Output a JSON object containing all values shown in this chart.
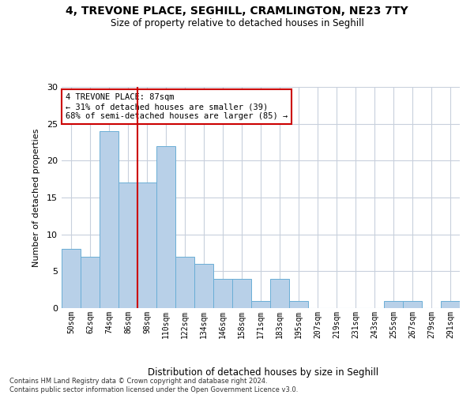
{
  "title1": "4, TREVONE PLACE, SEGHILL, CRAMLINGTON, NE23 7TY",
  "title2": "Size of property relative to detached houses in Seghill",
  "xlabel": "Distribution of detached houses by size in Seghill",
  "ylabel": "Number of detached properties",
  "categories": [
    "50sqm",
    "62sqm",
    "74sqm",
    "86sqm",
    "98sqm",
    "110sqm",
    "122sqm",
    "134sqm",
    "146sqm",
    "158sqm",
    "171sqm",
    "183sqm",
    "195sqm",
    "207sqm",
    "219sqm",
    "231sqm",
    "243sqm",
    "255sqm",
    "267sqm",
    "279sqm",
    "291sqm"
  ],
  "values": [
    8,
    7,
    24,
    17,
    17,
    22,
    7,
    6,
    4,
    4,
    1,
    4,
    1,
    0,
    0,
    0,
    0,
    1,
    1,
    0,
    1
  ],
  "bar_color": "#b8d0e8",
  "bar_edge_color": "#6aaed6",
  "background_color": "#ffffff",
  "grid_color": "#c8d0dc",
  "red_line_x": 3.5,
  "annotation_text": "4 TREVONE PLACE: 87sqm\n← 31% of detached houses are smaller (39)\n68% of semi-detached houses are larger (85) →",
  "annotation_box_color": "#ffffff",
  "annotation_box_edge": "#cc0000",
  "red_line_color": "#cc0000",
  "ylim": [
    0,
    30
  ],
  "yticks": [
    0,
    5,
    10,
    15,
    20,
    25,
    30
  ],
  "footnote": "Contains HM Land Registry data © Crown copyright and database right 2024.\nContains public sector information licensed under the Open Government Licence v3.0."
}
